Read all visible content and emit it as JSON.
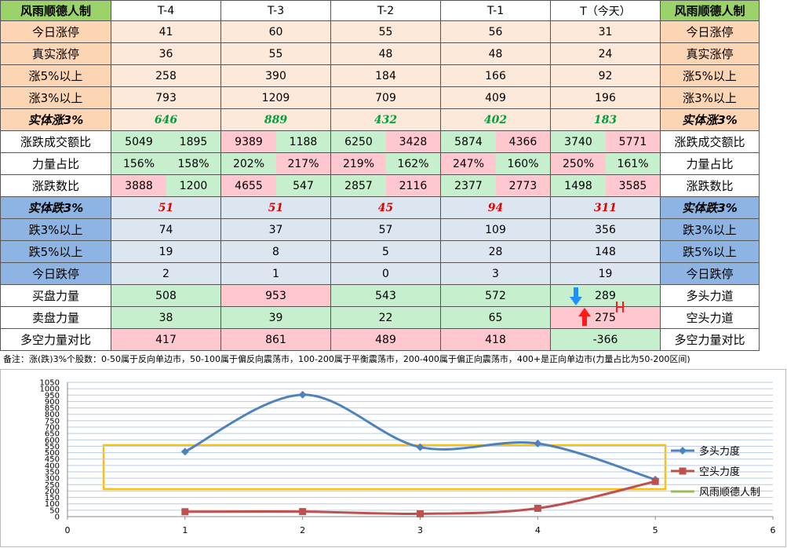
{
  "table": {
    "header": [
      "风雨顺德人制",
      "T-4",
      "T-3",
      "T-2",
      "T-1",
      "T（今天）",
      "风雨顺德人制"
    ],
    "rows": [
      {
        "label": "今日涨停",
        "values": [
          41,
          60,
          55,
          56,
          31
        ],
        "right": "今日涨停"
      },
      {
        "label": "真实涨停",
        "values": [
          36,
          55,
          48,
          48,
          24
        ],
        "right": "真实涨停"
      },
      {
        "label": "涨5%以上",
        "values": [
          258,
          390,
          184,
          166,
          92
        ],
        "right": "涨5%以上"
      },
      {
        "label": "涨3%以上",
        "values": [
          793,
          1209,
          709,
          409,
          196
        ],
        "right": "涨3%以上"
      },
      {
        "label": "实体涨3%",
        "values": [
          646,
          889,
          432,
          402,
          183
        ],
        "right": "实体涨3%"
      },
      {
        "label": "涨跌成交额比",
        "values": [
          [
            5049,
            1895
          ],
          [
            9389,
            1188
          ],
          [
            6250,
            3428
          ],
          [
            5874,
            4366
          ],
          [
            3740,
            5771
          ]
        ],
        "right": "涨跌成交额比"
      },
      {
        "label": "力量占比",
        "values": [
          [
            "156%",
            "158%"
          ],
          [
            "202%",
            "217%"
          ],
          [
            "219%",
            "162%"
          ],
          [
            "247%",
            "160%"
          ],
          [
            "250%",
            "161%"
          ]
        ],
        "right": "力量占比"
      },
      {
        "label": "涨跌数比",
        "values": [
          [
            3888,
            1200
          ],
          [
            4655,
            547
          ],
          [
            2857,
            2116
          ],
          [
            2377,
            2773
          ],
          [
            1498,
            3585
          ]
        ],
        "right": "涨跌数比"
      },
      {
        "label": "实体跌3%",
        "values": [
          51,
          51,
          45,
          94,
          311
        ],
        "right": "实体跌3%"
      },
      {
        "label": "跌3%以上",
        "values": [
          74,
          37,
          57,
          109,
          356
        ],
        "right": "跌3%以上"
      },
      {
        "label": "跌5%以上",
        "values": [
          19,
          8,
          5,
          28,
          148
        ],
        "right": "跌5%以上"
      },
      {
        "label": "今日跌停",
        "values": [
          2,
          1,
          0,
          3,
          19
        ],
        "right": "今日跌停"
      },
      {
        "label": "买盘力量",
        "values": [
          508,
          953,
          543,
          572,
          289
        ],
        "right": "多头力道"
      },
      {
        "label": "卖盘力量",
        "values": [
          38,
          39,
          22,
          65,
          275
        ],
        "right": "空头力道"
      },
      {
        "label": "多空力量对比",
        "values": [
          417,
          861,
          489,
          418,
          -366
        ],
        "right": "多空力量对比"
      }
    ],
    "note": "备注：涨(跌)3%个股数：0-50属于反向单边市，50-100属于偏反向震荡市，100-200属于平衡震荡市，200-400属于偏正向震荡市，400+是正向单边市(力量占比为50-200区间)"
  },
  "chart_data": {
    "type": "line",
    "x": [
      1,
      2,
      3,
      4,
      5
    ],
    "series": [
      {
        "name": "多头力度",
        "color": "#4f81bd",
        "marker": "diamond",
        "values": [
          508,
          953,
          543,
          572,
          289
        ]
      },
      {
        "name": "空头力度",
        "color": "#c0504d",
        "marker": "square",
        "values": [
          38,
          39,
          22,
          65,
          275
        ]
      },
      {
        "name": "风雨顺德人制",
        "color": "#9bbb59"
      }
    ],
    "xlim": [
      0,
      6
    ],
    "xticks": [
      0,
      1,
      2,
      3,
      4,
      5,
      6
    ],
    "ylim": [
      0,
      1050
    ],
    "yticks": [
      0,
      50,
      100,
      150,
      200,
      250,
      300,
      350,
      400,
      450,
      500,
      550,
      600,
      650,
      700,
      750,
      800,
      850,
      900,
      950,
      1000,
      1050
    ],
    "grid": true,
    "legend": "right"
  }
}
